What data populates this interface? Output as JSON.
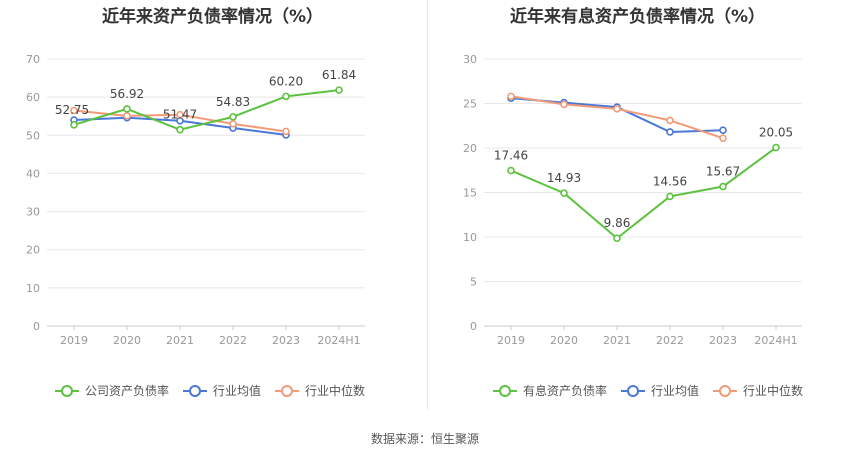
{
  "footer": "数据来源：恒生聚源",
  "chart_data": [
    {
      "type": "line",
      "title": "近年来资产负债率情况（%）",
      "categories": [
        "2019",
        "2020",
        "2021",
        "2022",
        "2023",
        "2024H1"
      ],
      "ylim": [
        0,
        70
      ],
      "yticks": [
        0,
        10,
        20,
        30,
        40,
        50,
        60,
        70
      ],
      "grid": true,
      "legend_position": "bottom",
      "series": [
        {
          "name": "公司资产负债率",
          "color": "#5cc23f",
          "labeled": true,
          "values": [
            52.75,
            56.92,
            51.47,
            54.83,
            60.2,
            61.84
          ],
          "labels": [
            "52.75",
            "56.92",
            "51.47",
            "54.83",
            "60.20",
            "61.84"
          ]
        },
        {
          "name": "行业均值",
          "color": "#4a78d8",
          "labeled": false,
          "values": [
            54.0,
            54.6,
            53.8,
            51.9,
            50.1,
            null
          ]
        },
        {
          "name": "行业中位数",
          "color": "#f39a78",
          "labeled": false,
          "values": [
            56.5,
            55.1,
            55.4,
            53.0,
            51.0,
            null
          ]
        }
      ]
    },
    {
      "type": "line",
      "title": "近年来有息资产负债率情况（%）",
      "categories": [
        "2019",
        "2020",
        "2021",
        "2022",
        "2023",
        "2024H1"
      ],
      "ylim": [
        0,
        30
      ],
      "yticks": [
        0,
        5,
        10,
        15,
        20,
        25,
        30
      ],
      "grid": true,
      "legend_position": "bottom",
      "series": [
        {
          "name": "有息资产负债率",
          "color": "#5cc23f",
          "labeled": true,
          "values": [
            17.46,
            14.93,
            9.86,
            14.56,
            15.67,
            20.05
          ],
          "labels": [
            "17.46",
            "14.93",
            "9.86",
            "14.56",
            "15.67",
            "20.05"
          ]
        },
        {
          "name": "行业均值",
          "color": "#4a78d8",
          "labeled": false,
          "values": [
            25.6,
            25.1,
            24.6,
            21.8,
            22.0,
            null
          ]
        },
        {
          "name": "行业中位数",
          "color": "#f39a78",
          "labeled": false,
          "values": [
            25.8,
            24.9,
            24.4,
            23.1,
            21.1,
            null
          ]
        }
      ]
    }
  ]
}
